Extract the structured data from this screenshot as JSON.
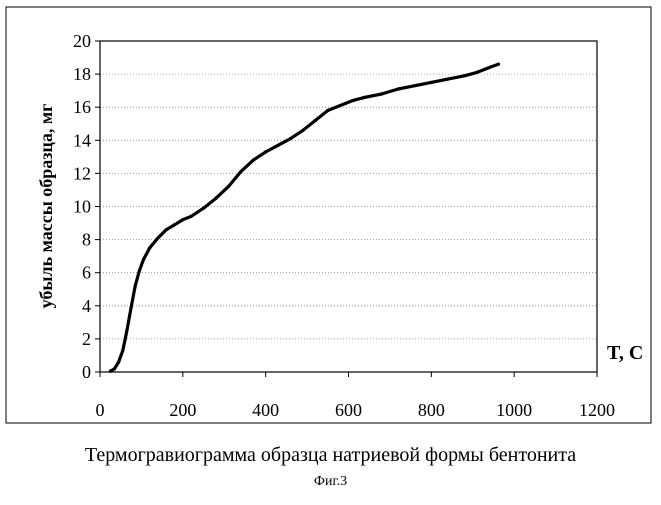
{
  "figure": {
    "caption": "Термогравиограмма образца натриевой формы бентонита",
    "label": "Фиг.3"
  },
  "chart_data": {
    "type": "line",
    "title": "",
    "xlabel": "T, C",
    "ylabel": "убыль массы образца, мг",
    "xlim": [
      0,
      1200
    ],
    "ylim": [
      0,
      20
    ],
    "xticks": [
      0,
      200,
      400,
      600,
      800,
      1000,
      1200
    ],
    "yticks": [
      0,
      2,
      4,
      6,
      8,
      10,
      12,
      14,
      16,
      18,
      20
    ],
    "grid": {
      "horizontal": true,
      "vertical": false,
      "style": "dotted"
    },
    "legend": "none",
    "series": [
      {
        "color": "#000000",
        "x": [
          25,
          35,
          45,
          55,
          65,
          75,
          85,
          95,
          105,
          120,
          140,
          160,
          180,
          200,
          220,
          250,
          280,
          310,
          340,
          370,
          400,
          430,
          460,
          490,
          520,
          550,
          580,
          610,
          640,
          680,
          720,
          760,
          800,
          840,
          880,
          910,
          930,
          945,
          962
        ],
        "y": [
          0.05,
          0.2,
          0.6,
          1.3,
          2.5,
          3.9,
          5.2,
          6.1,
          6.8,
          7.5,
          8.1,
          8.6,
          8.9,
          9.2,
          9.4,
          9.9,
          10.5,
          11.2,
          12.1,
          12.8,
          13.3,
          13.7,
          14.1,
          14.6,
          15.2,
          15.8,
          16.1,
          16.4,
          16.6,
          16.8,
          17.1,
          17.3,
          17.5,
          17.7,
          17.9,
          18.1,
          18.3,
          18.45,
          18.6
        ]
      }
    ]
  }
}
